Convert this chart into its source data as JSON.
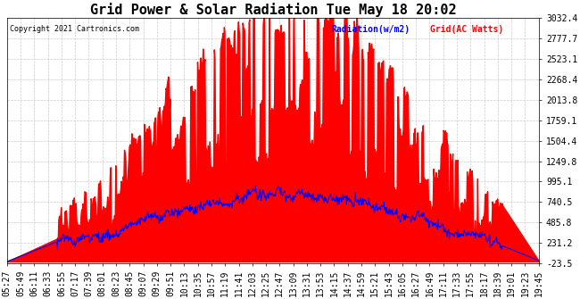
{
  "title": "Grid Power & Solar Radiation Tue May 18 20:02",
  "copyright": "Copyright 2021 Cartronics.com",
  "legend_radiation": "Radiation(w/m2)",
  "legend_grid": "Grid(AC Watts)",
  "ylabel_right_ticks": [
    3032.4,
    2777.7,
    2523.1,
    2268.4,
    2013.8,
    1759.1,
    1504.4,
    1249.8,
    995.1,
    740.5,
    485.8,
    231.2,
    -23.5
  ],
  "ymin": -23.5,
  "ymax": 3032.4,
  "background_color": "#ffffff",
  "grid_color": "#cccccc",
  "fill_color": "#ff0000",
  "line_color": "#0000ff",
  "title_fontsize": 11,
  "tick_fontsize": 7.0
}
